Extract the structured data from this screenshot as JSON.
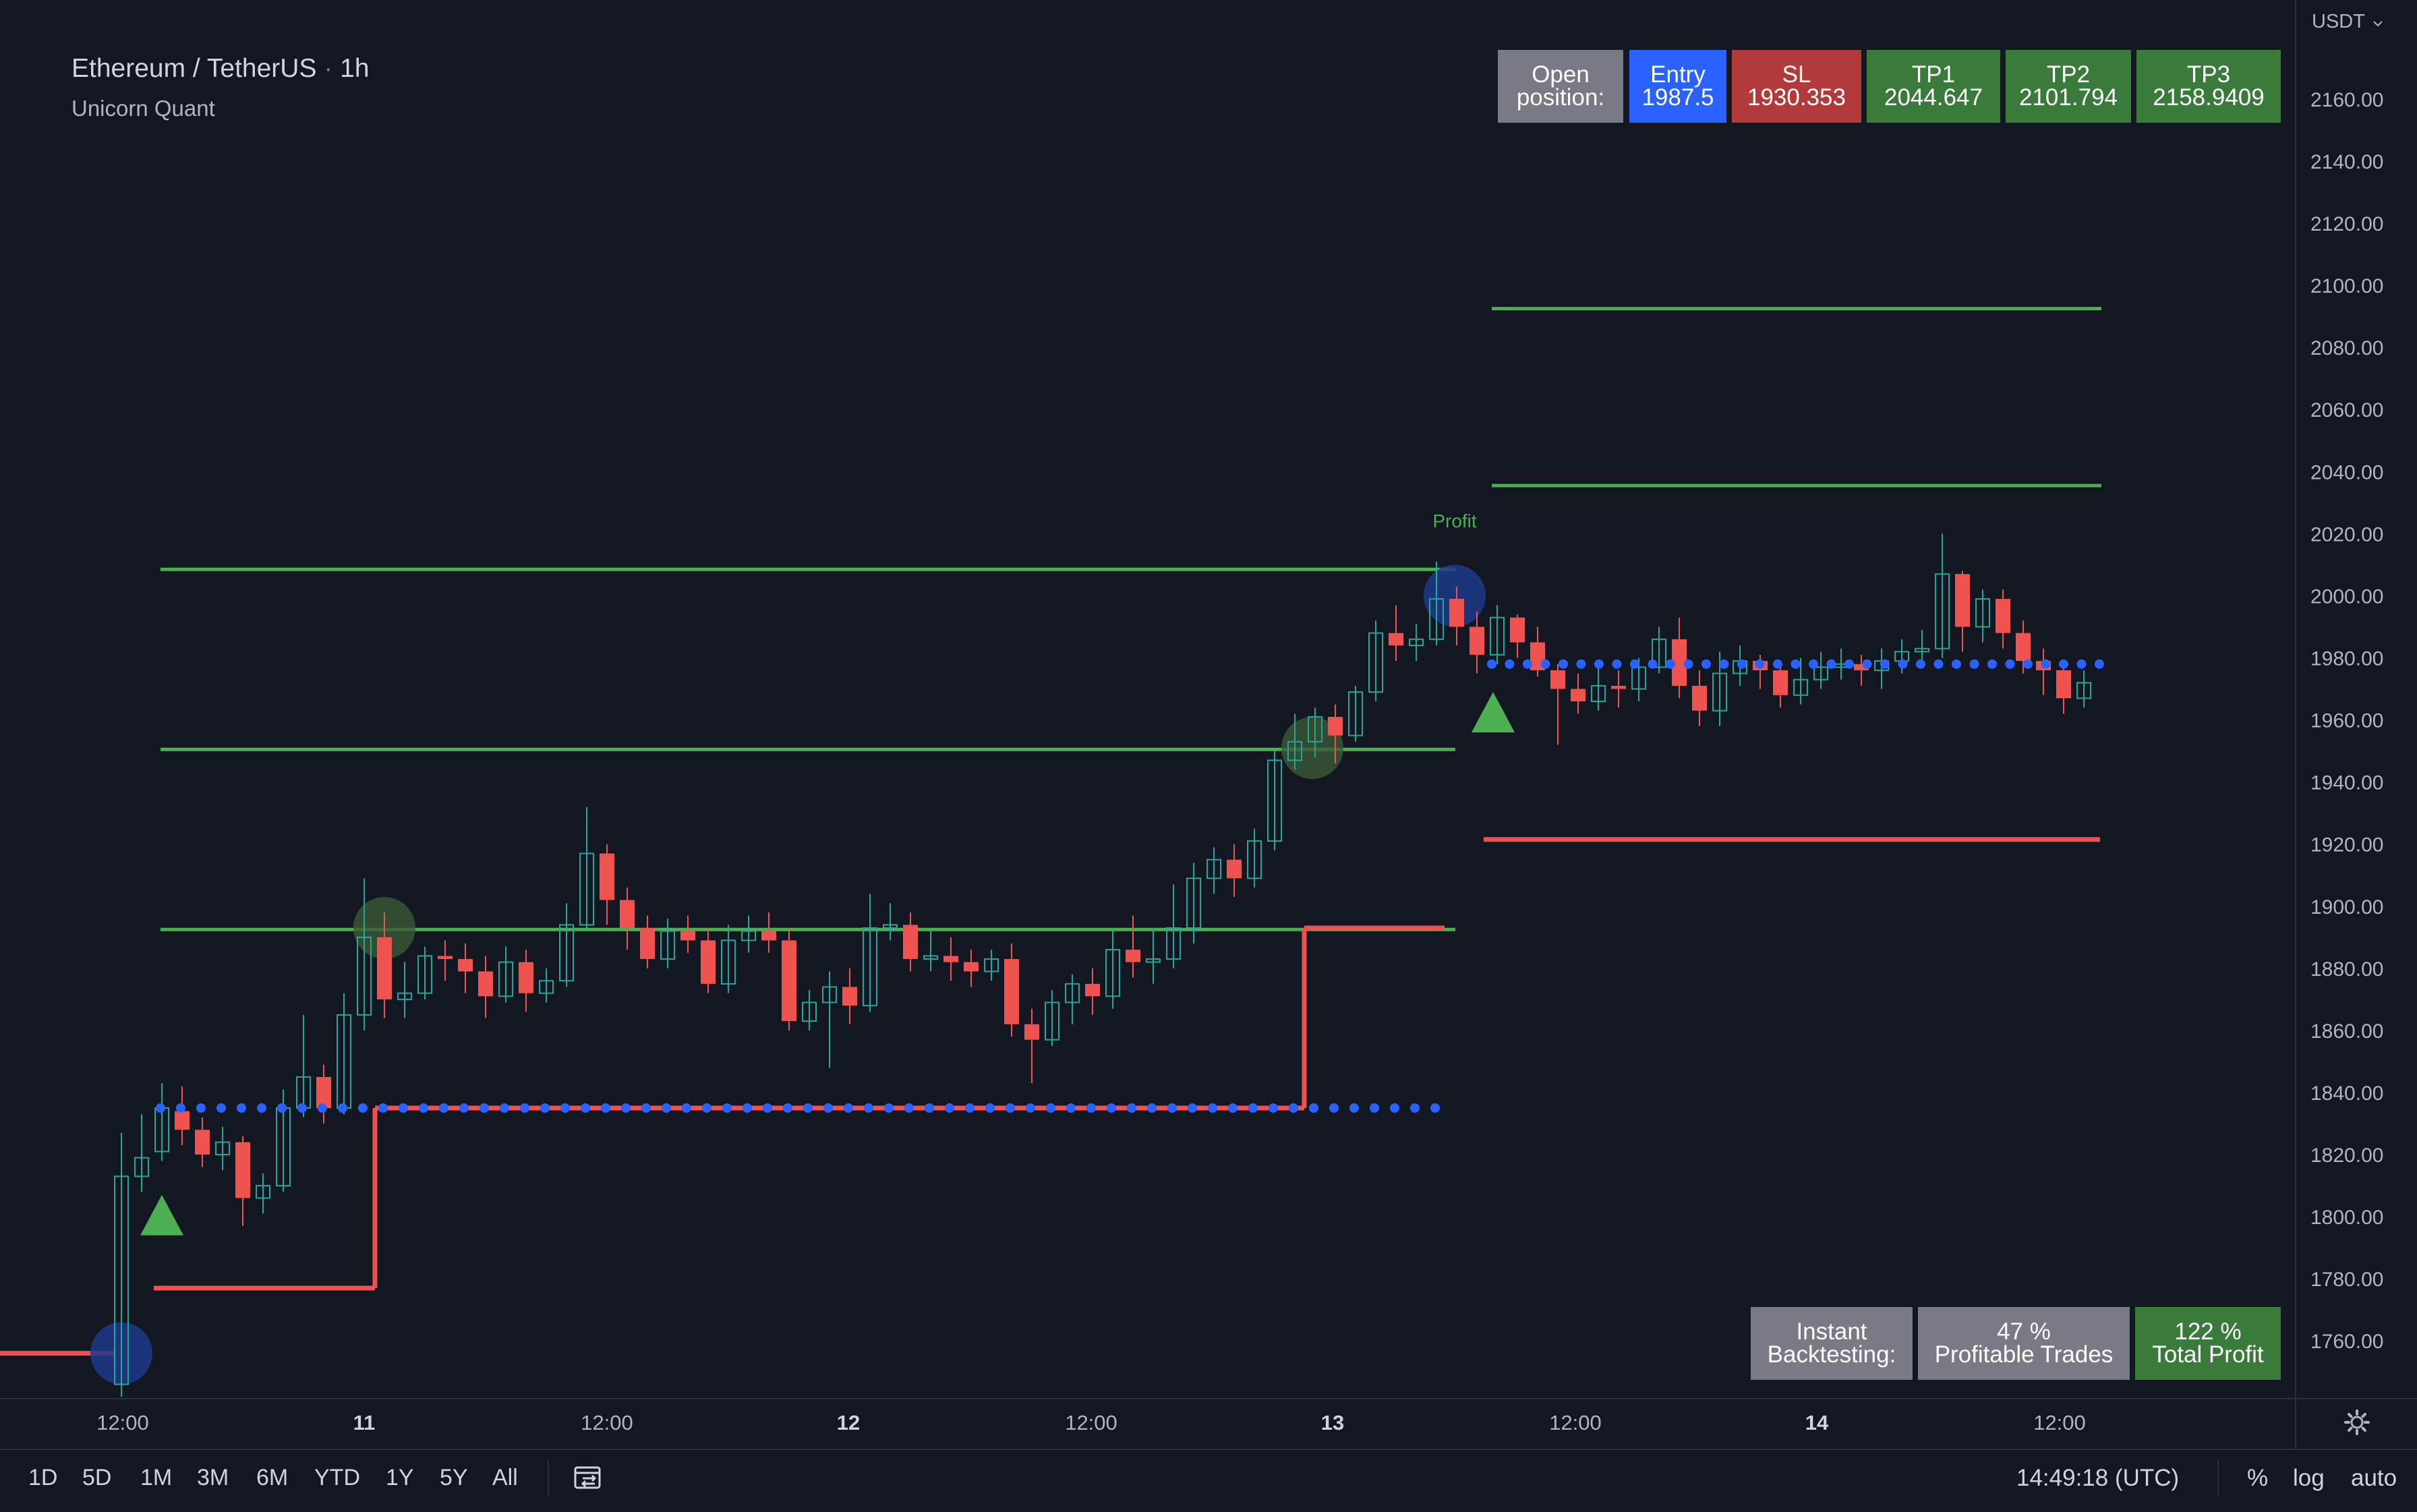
{
  "header": {
    "symbol": "Ethereum / TetherUS",
    "separator": "·",
    "interval": "1h",
    "indicator": "Unicorn Quant",
    "currency": "USDT"
  },
  "position_table": {
    "open": [
      "Open",
      "position:"
    ],
    "entry": [
      "Entry",
      "1987.5"
    ],
    "sl": [
      "SL",
      "1930.353"
    ],
    "tp1": [
      "TP1",
      "2044.647"
    ],
    "tp2": [
      "TP2",
      "2101.794"
    ],
    "tp3": [
      "TP3",
      "2158.9409"
    ]
  },
  "stats_table": {
    "instant": [
      "Instant",
      "Backtesting:"
    ],
    "profitable": [
      "47 %",
      "Profitable Trades"
    ],
    "total": [
      "122 %",
      "Total Profit"
    ]
  },
  "annotations": {
    "profit": "Profit"
  },
  "colors": {
    "background": "#131722",
    "up": "#26a69a",
    "down": "#ef5350",
    "green_line": "#4caf50",
    "red_line": "#f05050",
    "blue_dot": "#2962ff",
    "grey_box": "#787b86",
    "blue_box": "#2962ff",
    "red_box": "#b23a3a",
    "green_box": "#3a7a3a"
  },
  "bottom_bar": {
    "ranges": [
      "1D",
      "5D",
      "1M",
      "3M",
      "6M",
      "YTD",
      "1Y",
      "5Y",
      "All"
    ],
    "clock": "14:49:18 (UTC)",
    "percent": "%",
    "log": "log",
    "auto": "auto"
  },
  "chart_data": {
    "type": "candlestick",
    "symbol": "Ethereum / TetherUS",
    "interval": "1h",
    "ylim": [
      1745,
      2175
    ],
    "y_ticks": [
      1760,
      1780,
      1800,
      1820,
      1840,
      1860,
      1880,
      1900,
      1920,
      1940,
      1960,
      1980,
      2000,
      2020,
      2040,
      2060,
      2080,
      2100,
      2120,
      2140,
      2160
    ],
    "x_ticks": [
      {
        "label": "12:00",
        "bold": false
      },
      {
        "label": "11",
        "bold": true
      },
      {
        "label": "12:00",
        "bold": false
      },
      {
        "label": "12",
        "bold": true
      },
      {
        "label": "12:00",
        "bold": false
      },
      {
        "label": "13",
        "bold": true
      },
      {
        "label": "12:00",
        "bold": false
      },
      {
        "label": "14",
        "bold": true
      },
      {
        "label": "12:00",
        "bold": false
      }
    ],
    "candles": [
      [
        1746,
        1813,
        1742,
        1827
      ],
      [
        1813,
        1819,
        1808,
        1833
      ],
      [
        1821,
        1835,
        1818,
        1843
      ],
      [
        1834,
        1828,
        1823,
        1842
      ],
      [
        1828,
        1820,
        1816,
        1832
      ],
      [
        1820,
        1824,
        1815,
        1829
      ],
      [
        1824,
        1806,
        1797,
        1826
      ],
      [
        1806,
        1810,
        1801,
        1814
      ],
      [
        1810,
        1835,
        1808,
        1841
      ],
      [
        1835,
        1845,
        1832,
        1865
      ],
      [
        1845,
        1835,
        1830,
        1849
      ],
      [
        1835,
        1865,
        1833,
        1872
      ],
      [
        1865,
        1890,
        1860,
        1909
      ],
      [
        1890,
        1870,
        1864,
        1898
      ],
      [
        1870,
        1872,
        1864,
        1882
      ],
      [
        1872,
        1884,
        1870,
        1887
      ],
      [
        1884,
        1883,
        1876,
        1889
      ],
      [
        1883,
        1879,
        1872,
        1888
      ],
      [
        1879,
        1871,
        1864,
        1884
      ],
      [
        1871,
        1882,
        1869,
        1887
      ],
      [
        1882,
        1872,
        1866,
        1886
      ],
      [
        1872,
        1876,
        1869,
        1880
      ],
      [
        1876,
        1894,
        1874,
        1901
      ],
      [
        1894,
        1917,
        1892,
        1932
      ],
      [
        1917,
        1902,
        1894,
        1920
      ],
      [
        1902,
        1893,
        1886,
        1906
      ],
      [
        1893,
        1883,
        1880,
        1897
      ],
      [
        1883,
        1892,
        1880,
        1896
      ],
      [
        1892,
        1889,
        1885,
        1897
      ],
      [
        1889,
        1875,
        1872,
        1893
      ],
      [
        1875,
        1889,
        1872,
        1894
      ],
      [
        1889,
        1892,
        1885,
        1897
      ],
      [
        1892,
        1889,
        1885,
        1898
      ],
      [
        1889,
        1863,
        1860,
        1893
      ],
      [
        1863,
        1869,
        1860,
        1873
      ],
      [
        1869,
        1874,
        1848,
        1879
      ],
      [
        1874,
        1868,
        1862,
        1880
      ],
      [
        1868,
        1893,
        1866,
        1904
      ],
      [
        1893,
        1894,
        1889,
        1901
      ],
      [
        1894,
        1883,
        1879,
        1898
      ],
      [
        1883,
        1884,
        1879,
        1892
      ],
      [
        1884,
        1882,
        1876,
        1890
      ],
      [
        1882,
        1879,
        1874,
        1886
      ],
      [
        1879,
        1883,
        1876,
        1886
      ],
      [
        1883,
        1862,
        1858,
        1888
      ],
      [
        1862,
        1857,
        1843,
        1867
      ],
      [
        1857,
        1869,
        1855,
        1873
      ],
      [
        1869,
        1875,
        1862,
        1878
      ],
      [
        1875,
        1871,
        1865,
        1880
      ],
      [
        1871,
        1886,
        1867,
        1893
      ],
      [
        1886,
        1882,
        1877,
        1897
      ],
      [
        1882,
        1883,
        1875,
        1893
      ],
      [
        1883,
        1893,
        1880,
        1907
      ],
      [
        1893,
        1909,
        1888,
        1914
      ],
      [
        1909,
        1915,
        1904,
        1919
      ],
      [
        1915,
        1909,
        1903,
        1920
      ],
      [
        1909,
        1921,
        1906,
        1925
      ],
      [
        1921,
        1947,
        1918,
        1950
      ],
      [
        1947,
        1953,
        1944,
        1962
      ],
      [
        1953,
        1961,
        1948,
        1964
      ],
      [
        1961,
        1955,
        1946,
        1965
      ],
      [
        1955,
        1969,
        1953,
        1971
      ],
      [
        1969,
        1988,
        1966,
        1992
      ],
      [
        1988,
        1984,
        1979,
        1997
      ],
      [
        1984,
        1986,
        1979,
        1991
      ],
      [
        1986,
        1999,
        1984,
        2011
      ],
      [
        1999,
        1990,
        1984,
        2003
      ],
      [
        1990,
        1981,
        1975,
        1995
      ],
      [
        1981,
        1993,
        1978,
        1997
      ],
      [
        1993,
        1985,
        1980,
        1994
      ],
      [
        1985,
        1976,
        1974,
        1990
      ],
      [
        1976,
        1970,
        1952,
        1978
      ],
      [
        1970,
        1966,
        1962,
        1975
      ],
      [
        1966,
        1971,
        1963,
        1978
      ],
      [
        1971,
        1970,
        1964,
        1976
      ],
      [
        1970,
        1977,
        1966,
        1980
      ],
      [
        1977,
        1986,
        1975,
        1990
      ],
      [
        1986,
        1971,
        1967,
        1993
      ],
      [
        1971,
        1963,
        1958,
        1976
      ],
      [
        1963,
        1975,
        1958,
        1982
      ],
      [
        1975,
        1979,
        1971,
        1984
      ],
      [
        1979,
        1976,
        1970,
        1981
      ],
      [
        1976,
        1968,
        1964,
        1979
      ],
      [
        1968,
        1973,
        1965,
        1980
      ],
      [
        1973,
        1977,
        1970,
        1982
      ],
      [
        1977,
        1978,
        1973,
        1983
      ],
      [
        1978,
        1976,
        1971,
        1981
      ],
      [
        1976,
        1979,
        1970,
        1983
      ],
      [
        1979,
        1982,
        1975,
        1986
      ],
      [
        1982,
        1983,
        1979,
        1989
      ],
      [
        1983,
        2007,
        1980,
        2020
      ],
      [
        2007,
        1990,
        1982,
        2008
      ],
      [
        1990,
        1999,
        1985,
        2002
      ],
      [
        1999,
        1988,
        1983,
        2002
      ],
      [
        1988,
        1979,
        1975,
        1992
      ],
      [
        1979,
        1976,
        1968,
        1983
      ],
      [
        1976,
        1967,
        1962,
        1978
      ],
      [
        1967,
        1972,
        1964,
        1976
      ]
    ],
    "tp_levels": [
      {
        "value": 2008.5,
        "segment": 1
      },
      {
        "value": 1950.5,
        "segment": 1
      },
      {
        "value": 1892.5,
        "segment": 1
      },
      {
        "value": 2092.5,
        "segment": 2
      },
      {
        "value": 2035.5,
        "segment": 2
      }
    ],
    "stop_loss_steps": [
      {
        "value": 1756,
        "segment": 0
      },
      {
        "value": 1777,
        "segment": 1
      },
      {
        "value": 1835,
        "segment": 2
      },
      {
        "value": 1893,
        "segment": 3
      },
      {
        "value": 1921.5,
        "segment": 4
      }
    ],
    "entry_dots": [
      {
        "value": 1835,
        "segment": 1
      },
      {
        "value": 1978,
        "segment": 2
      }
    ],
    "buy_signals": [
      1800.5,
      1962.5
    ],
    "entry_circles": [
      1756,
      2000
    ],
    "tp_hit_circles": [
      1893,
      1951
    ]
  }
}
